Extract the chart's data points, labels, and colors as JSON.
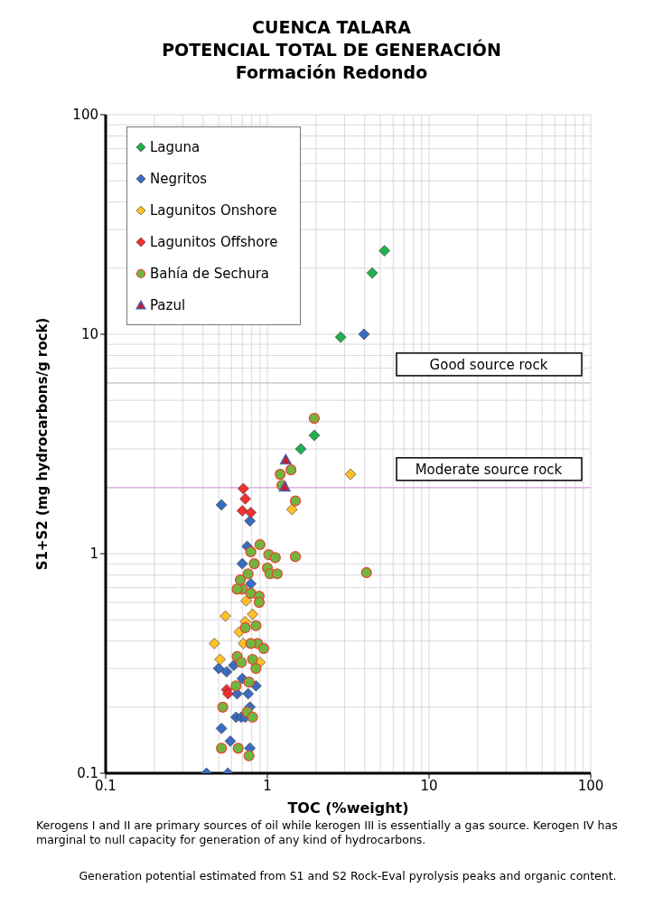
{
  "chart_data": {
    "type": "scatter",
    "title": "CUENCA TALARA\nPOTENCIAL TOTAL DE GENERACIÓN",
    "subtitle": "Formación Redondo",
    "xlabel": "TOC (%weight)",
    "ylabel": "S1+S2 (mg hydrocarbons/g rock)",
    "log": "xy",
    "xlim": [
      0.1,
      100
    ],
    "ylim": [
      0.1,
      100
    ],
    "xticks": [
      0.1,
      1,
      10,
      100
    ],
    "yticks": [
      0.1,
      1,
      10,
      100
    ],
    "grid": true,
    "legend": "top left",
    "series": [
      {
        "name": "Laguna",
        "color": "#22b04f",
        "marker": "diamond",
        "x": [
          5.3,
          4.45,
          2.84,
          1.95,
          1.61
        ],
        "values": [
          24,
          19,
          9.7,
          3.46,
          3.0
        ]
      },
      {
        "name": "Negritos",
        "color": "#3a6cc0",
        "marker": "diamond",
        "x": [
          3.96,
          0.52,
          0.78,
          0.75,
          0.7,
          0.79,
          0.42,
          0.57,
          0.52,
          0.59,
          0.78,
          0.64,
          0.69,
          0.73,
          0.65,
          0.76,
          0.7,
          0.85,
          0.5,
          0.56,
          0.62,
          0.78
        ],
        "values": [
          10,
          1.67,
          1.41,
          1.08,
          0.9,
          0.73,
          0.1,
          0.1,
          0.16,
          0.14,
          0.13,
          0.18,
          0.18,
          0.18,
          0.23,
          0.23,
          0.27,
          0.25,
          0.3,
          0.29,
          0.31,
          0.2
        ]
      },
      {
        "name": "Lagunitos Onshore",
        "color": "#ffc02a",
        "marker": "diamond",
        "x": [
          3.27,
          1.42,
          0.74,
          0.55,
          0.81,
          0.73,
          0.67,
          0.47,
          0.71,
          0.51,
          0.9
        ],
        "values": [
          2.3,
          1.59,
          0.61,
          0.52,
          0.53,
          0.49,
          0.44,
          0.39,
          0.39,
          0.33,
          0.32
        ]
      },
      {
        "name": "Lagunitos Offshore",
        "color": "#f03030",
        "marker": "diamond",
        "x": [
          0.71,
          0.73,
          0.7,
          0.79,
          0.56,
          0.57
        ],
        "values": [
          1.98,
          1.78,
          1.57,
          1.54,
          0.24,
          0.23
        ]
      },
      {
        "name": "Bahía de Sechura",
        "color": "#70b63e",
        "marker": "circle",
        "x": [
          1.95,
          1.2,
          1.4,
          1.23,
          1.49,
          0.9,
          0.79,
          1.02,
          1.12,
          1.49,
          4.1,
          0.83,
          1.0,
          1.04,
          1.15,
          0.76,
          0.68,
          0.7,
          0.65,
          0.79,
          0.89,
          0.89,
          0.73,
          0.85,
          0.87,
          0.95,
          0.79,
          0.65,
          0.81,
          0.69,
          0.85,
          0.64,
          0.77,
          0.53,
          0.75,
          0.81,
          0.52,
          0.66,
          0.77
        ],
        "values": [
          4.14,
          2.3,
          2.41,
          2.05,
          1.74,
          1.1,
          1.02,
          0.99,
          0.96,
          0.97,
          0.82,
          0.9,
          0.86,
          0.81,
          0.81,
          0.81,
          0.76,
          0.69,
          0.69,
          0.66,
          0.64,
          0.6,
          0.46,
          0.47,
          0.39,
          0.37,
          0.39,
          0.34,
          0.33,
          0.32,
          0.3,
          0.25,
          0.26,
          0.2,
          0.19,
          0.18,
          0.13,
          0.13,
          0.12
        ]
      },
      {
        "name": "Pazul",
        "color": "#c0203a",
        "marker": "triangle",
        "x": [
          1.3,
          1.28
        ],
        "values": [
          2.68,
          2.02
        ]
      }
    ],
    "ref_lines": [
      {
        "axis": "y",
        "value": 6,
        "label": "Good source rock",
        "color": "#bfbfbf"
      },
      {
        "axis": "y",
        "value": 2,
        "label": "Moderate source rock",
        "color": "#d9a0d9"
      }
    ],
    "annotations": [
      "Kerogens I and II are primary sources of oil while kerogen III is essentially a gas source. Kerogen IV has marginal to null capacity for generation of any kind of hydrocarbons.",
      "Generation potential estimated from S1 and S2 Rock-Eval pyrolysis peaks and organic content."
    ]
  }
}
